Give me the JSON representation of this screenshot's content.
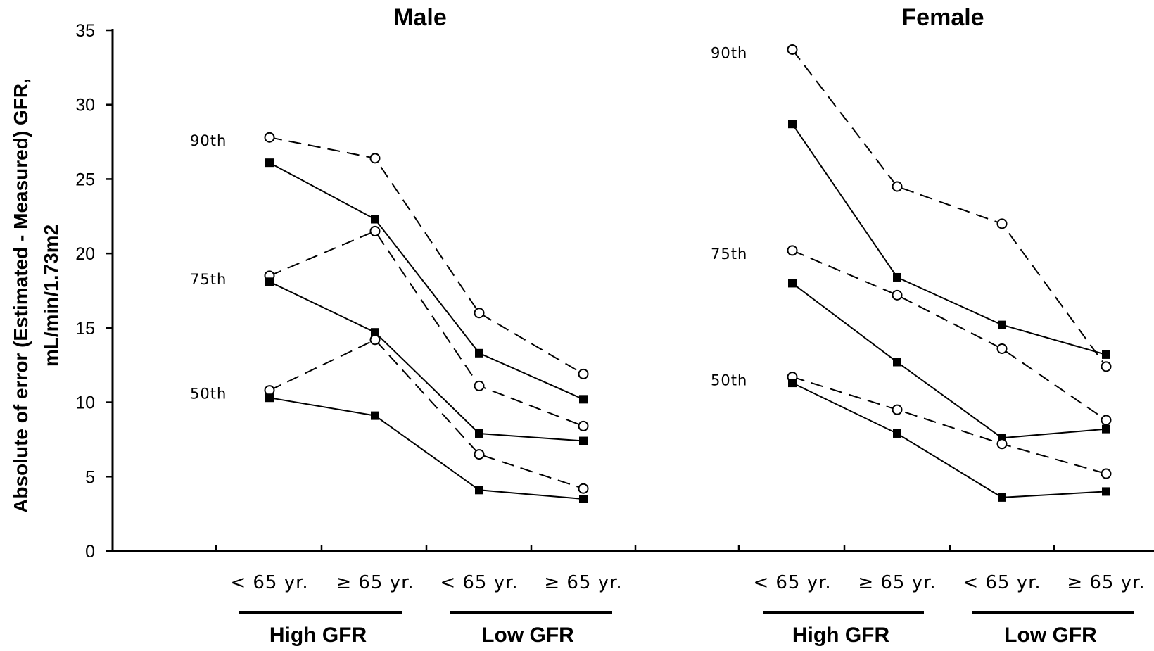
{
  "chart_data": {
    "type": "line",
    "ylabel_line1": "Absolute of error (Estimated - Measured) GFR,",
    "ylabel_line2": "mL/min/1.73m2",
    "ylim": [
      0,
      35
    ],
    "yticks": [
      "0",
      "5",
      "10",
      "15",
      "20",
      "25",
      "30",
      "35"
    ],
    "grid": false,
    "categories": [
      "< 65 yr.",
      "≥ 65 yr.",
      "< 65 yr.",
      "≥ 65 yr."
    ],
    "groups": [
      "High GFR",
      "Low GFR"
    ],
    "series_styles": [
      {
        "line": "solid",
        "marker": "filled-square",
        "color": "#000000"
      },
      {
        "line": "dashed",
        "marker": "open-circle",
        "color": "#000000"
      }
    ],
    "panels": [
      {
        "title": "Male",
        "percentile_labels": [
          "90th",
          "75th",
          "50th"
        ],
        "percentiles": [
          {
            "label": "90th",
            "solid": [
              26.1,
              22.3,
              13.3,
              10.2
            ],
            "dashed": [
              27.8,
              26.4,
              16.0,
              11.9
            ]
          },
          {
            "label": "75th",
            "solid": [
              18.1,
              14.7,
              7.9,
              7.4
            ],
            "dashed": [
              18.5,
              21.5,
              11.1,
              8.4
            ]
          },
          {
            "label": "50th",
            "solid": [
              10.3,
              9.1,
              4.1,
              3.5
            ],
            "dashed": [
              10.8,
              14.2,
              6.5,
              4.2
            ]
          }
        ]
      },
      {
        "title": "Female",
        "percentile_labels": [
          "90th",
          "75th",
          "50th"
        ],
        "percentiles": [
          {
            "label": "90th",
            "solid": [
              28.7,
              18.4,
              15.2,
              13.2
            ],
            "dashed": [
              33.7,
              24.5,
              22.0,
              12.4
            ]
          },
          {
            "label": "75th",
            "solid": [
              18.0,
              12.7,
              7.6,
              8.2
            ],
            "dashed": [
              20.2,
              17.2,
              13.6,
              8.8
            ]
          },
          {
            "label": "50th",
            "solid": [
              11.3,
              7.9,
              3.6,
              4.0
            ],
            "dashed": [
              11.7,
              9.5,
              7.2,
              5.2
            ]
          }
        ]
      }
    ]
  }
}
